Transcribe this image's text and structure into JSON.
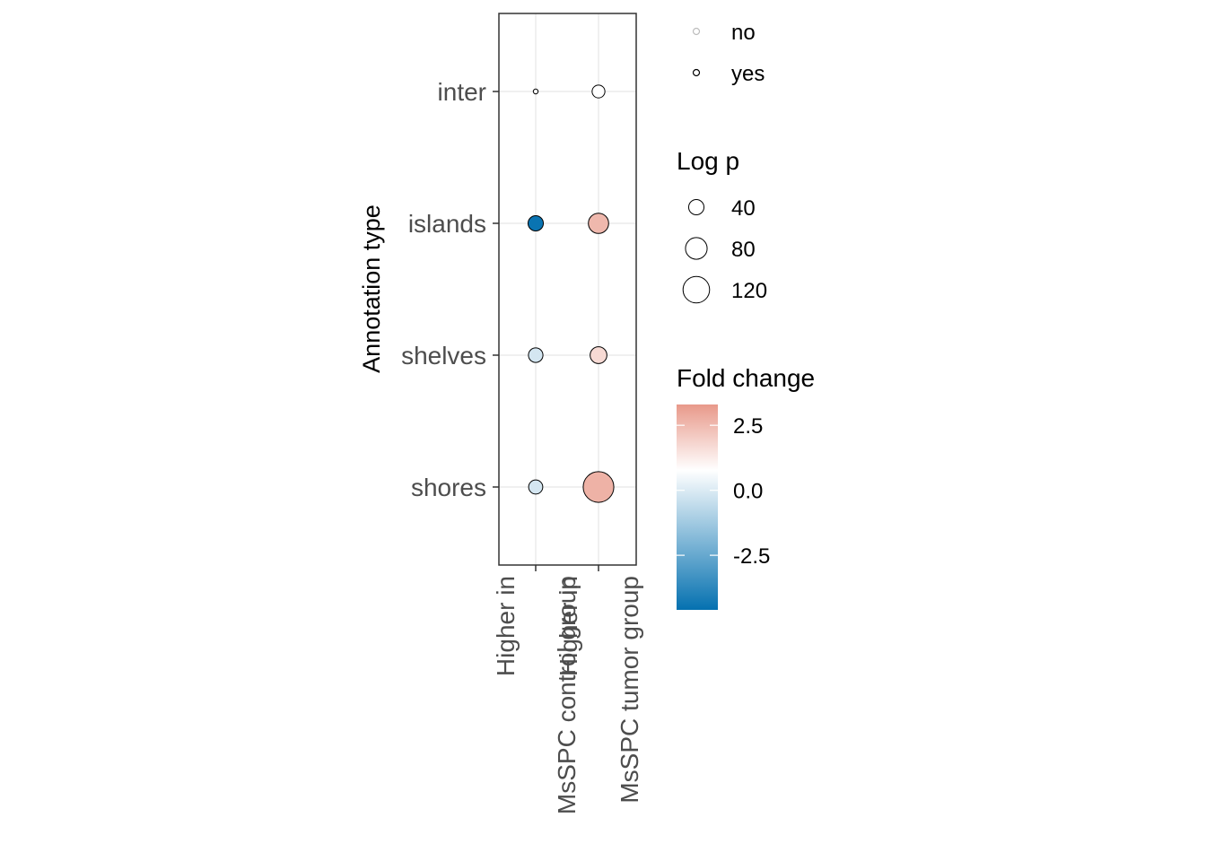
{
  "chart_data": {
    "type": "scatter",
    "title": "",
    "xlabel": "",
    "ylabel": "Annotation type",
    "categories_x": [
      [
        "Higher in",
        "MsSPC control group"
      ],
      [
        "Higher in",
        "MsSPC tumor group"
      ]
    ],
    "categories_y": [
      "inter",
      "islands",
      "shelves",
      "shores"
    ],
    "points": [
      {
        "x": 0,
        "y": "inter",
        "fold_change": 0.0,
        "log_p": 4,
        "significant": "yes"
      },
      {
        "x": 1,
        "y": "inter",
        "fold_change": 0.0,
        "log_p": 28,
        "significant": "yes"
      },
      {
        "x": 0,
        "y": "islands",
        "fold_change": -4.5,
        "log_p": 40,
        "significant": "yes"
      },
      {
        "x": 1,
        "y": "islands",
        "fold_change": 2.3,
        "log_p": 70,
        "significant": "yes"
      },
      {
        "x": 0,
        "y": "shelves",
        "fold_change": -0.8,
        "log_p": 36,
        "significant": "yes"
      },
      {
        "x": 1,
        "y": "shelves",
        "fold_change": 1.2,
        "log_p": 48,
        "significant": "yes"
      },
      {
        "x": 0,
        "y": "shores",
        "fold_change": -0.8,
        "log_p": 34,
        "significant": "yes"
      },
      {
        "x": 1,
        "y": "shores",
        "fold_change": 2.5,
        "log_p": 160,
        "significant": "yes"
      }
    ],
    "grid": true,
    "legends": {
      "significance": {
        "title": "",
        "entries": [
          "no",
          "yes"
        ],
        "stroke_colors": [
          "#bdbdbd",
          "#000000"
        ]
      },
      "size": {
        "title": "Log p",
        "entries": [
          "40",
          "80",
          "120"
        ],
        "values": [
          40,
          80,
          120
        ]
      },
      "color": {
        "title": "Fold change",
        "ticks": [
          "2.5",
          "0.0",
          "-2.5"
        ],
        "tick_values": [
          2.5,
          0.0,
          -2.5
        ],
        "range": [
          -4.6,
          3.3
        ],
        "low_color": "#0571b0",
        "mid_color": "#ffffff",
        "high_color": "#e8998a"
      }
    }
  }
}
